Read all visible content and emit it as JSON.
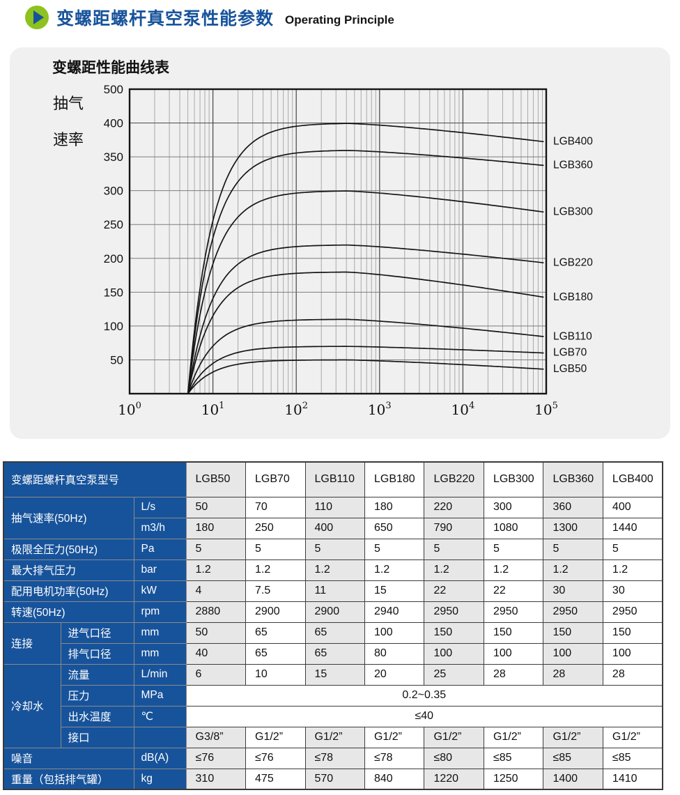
{
  "header": {
    "icon": "play-circle-icon",
    "title_zh": "变螺距螺杆真空泵性能参数",
    "title_en": "Operating Principle"
  },
  "colors": {
    "brand_blue": "#17539b",
    "icon_green": "#8dc21f",
    "panel_gray": "#f0f0f0",
    "cell_gray": "#e7e7e7",
    "curve_color": "#161616"
  },
  "chart_data": {
    "type": "line",
    "title": "变螺距性能曲线表",
    "ylabel_lines": [
      "抽气",
      "速率"
    ],
    "x_scale": "log",
    "x_tick_base": "10",
    "x_tick_exponents": [
      "0",
      "1",
      "2",
      "3",
      "4",
      "5"
    ],
    "x_range_log": [
      0,
      5
    ],
    "y_ticks": [
      "500",
      "400",
      "350",
      "300",
      "250",
      "200",
      "150",
      "100",
      "50"
    ],
    "y_axis_note": "linear 0-400 every 50, top slot 400-500 compressed",
    "curve_start_x": 5,
    "series": [
      {
        "name": "LGB400",
        "plateau": 400,
        "end": 372,
        "start_log": 0.7
      },
      {
        "name": "LGB360",
        "plateau": 360,
        "end": 337,
        "start_log": 0.7
      },
      {
        "name": "LGB300",
        "plateau": 300,
        "end": 268,
        "start_log": 0.7
      },
      {
        "name": "LGB220",
        "plateau": 220,
        "end": 193,
        "start_log": 0.7
      },
      {
        "name": "LGB180",
        "plateau": 180,
        "end": 142,
        "start_log": 0.7
      },
      {
        "name": "LGB110",
        "plateau": 110,
        "end": 84,
        "start_log": 0.7
      },
      {
        "name": "LGB70",
        "plateau": 70,
        "end": 60,
        "start_log": 0.7
      },
      {
        "name": "LGB50",
        "plateau": 50,
        "end": 36,
        "start_log": 0.7
      }
    ]
  },
  "table": {
    "model_header_label": "变螺距螺杆真空泵型号",
    "models": [
      "LGB50",
      "LGB70",
      "LGB110",
      "LGB180",
      "LGB220",
      "LGB300",
      "LGB360",
      "LGB400"
    ],
    "rows": [
      {
        "cells": [
          {
            "t": "抽气速率(50Hz)",
            "cs": 2,
            "rs": 2
          },
          {
            "t": "L/s"
          }
        ],
        "values": [
          "50",
          "70",
          "110",
          "180",
          "220",
          "300",
          "360",
          "400"
        ]
      },
      {
        "cells": [
          {
            "t": "m3/h"
          }
        ],
        "values": [
          "180",
          "250",
          "400",
          "650",
          "790",
          "1080",
          "1300",
          "1440"
        ]
      },
      {
        "cells": [
          {
            "t": "极限全压力(50Hz)",
            "cs": 2
          },
          {
            "t": "Pa"
          }
        ],
        "values": [
          "5",
          "5",
          "5",
          "5",
          "5",
          "5",
          "5",
          "5"
        ]
      },
      {
        "cells": [
          {
            "t": "最大排气压力",
            "cs": 2
          },
          {
            "t": "bar"
          }
        ],
        "values": [
          "1.2",
          "1.2",
          "1.2",
          "1.2",
          "1.2",
          "1.2",
          "1.2",
          "1.2"
        ]
      },
      {
        "cells": [
          {
            "t": "配用电机功率(50Hz)",
            "cs": 2
          },
          {
            "t": "kW"
          }
        ],
        "values": [
          "4",
          "7.5",
          "11",
          "15",
          "22",
          "22",
          "30",
          "30"
        ]
      },
      {
        "cells": [
          {
            "t": "转速(50Hz)",
            "cs": 2
          },
          {
            "t": "rpm"
          }
        ],
        "values": [
          "2880",
          "2900",
          "2900",
          "2940",
          "2950",
          "2950",
          "2950",
          "2950"
        ]
      },
      {
        "cells": [
          {
            "t": "连接",
            "rs": 2
          },
          {
            "t": "进气口径"
          },
          {
            "t": "mm"
          }
        ],
        "values": [
          "50",
          "65",
          "65",
          "100",
          "150",
          "150",
          "150",
          "150"
        ]
      },
      {
        "cells": [
          {
            "t": "排气口径"
          },
          {
            "t": "mm"
          }
        ],
        "values": [
          "40",
          "65",
          "65",
          "80",
          "100",
          "100",
          "100",
          "100"
        ]
      },
      {
        "cells": [
          {
            "t": "冷却水",
            "rs": 4
          },
          {
            "t": "流量"
          },
          {
            "t": "L/min"
          }
        ],
        "values": [
          "6",
          "10",
          "15",
          "20",
          "25",
          "28",
          "28",
          "28"
        ]
      },
      {
        "cells": [
          {
            "t": "压力"
          },
          {
            "t": "MPa"
          }
        ],
        "merged": "0.2~0.35"
      },
      {
        "cells": [
          {
            "t": "出水温度"
          },
          {
            "t": "℃"
          }
        ],
        "merged": "≤40"
      },
      {
        "cells": [
          {
            "t": "接口"
          },
          {
            "t": ""
          }
        ],
        "values": [
          "G3/8”",
          "G1/2”",
          "G1/2”",
          "G1/2”",
          "G1/2”",
          "G1/2”",
          "G1/2”",
          "G1/2”"
        ]
      },
      {
        "cells": [
          {
            "t": "噪音",
            "cs": 2
          },
          {
            "t": "dB(A)"
          }
        ],
        "values": [
          "≤76",
          "≤76",
          "≤78",
          "≤78",
          "≤80",
          "≤85",
          "≤85",
          "≤85"
        ]
      },
      {
        "cells": [
          {
            "t": "重量（包括排气罐）",
            "cs": 2
          },
          {
            "t": "kg"
          }
        ],
        "values": [
          "310",
          "475",
          "570",
          "840",
          "1220",
          "1250",
          "1400",
          "1410"
        ]
      }
    ]
  }
}
